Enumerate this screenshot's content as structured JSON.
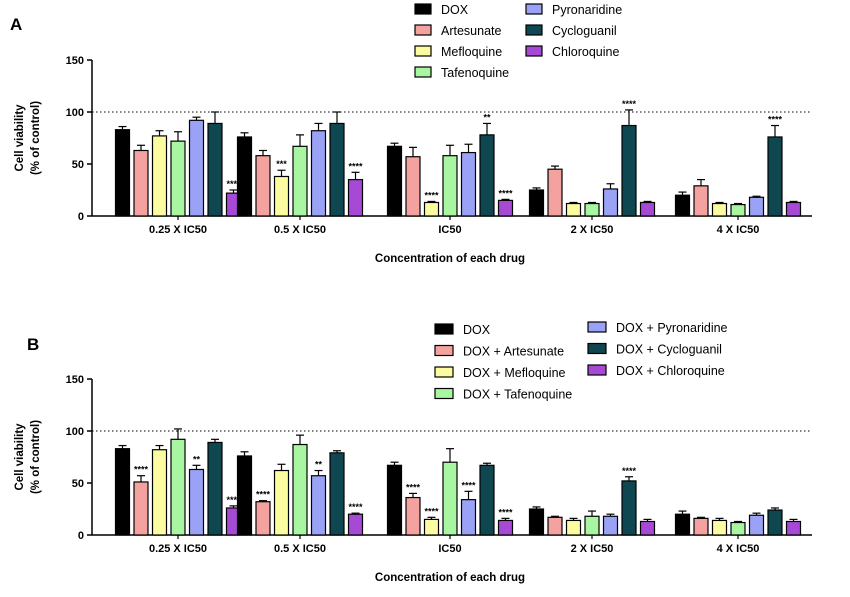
{
  "colors": {
    "DOX": "#000000",
    "Artesunate": "#f4a2a0",
    "Mefloquine": "#fbfca0",
    "Tafenoquine": "#a8f5a2",
    "Pyronaridine": "#9aa2f5",
    "Cycloguanil": "#0e4750",
    "Chloroquine": "#a64ad6"
  },
  "chart_data": [
    {
      "panel": "A",
      "type": "bar",
      "xlabel": "Concentration of each drug",
      "ylabel": [
        "Cell viability",
        "(% of control)"
      ],
      "ylim": [
        0,
        150
      ],
      "yticks": [
        "0",
        "50",
        "100",
        "150"
      ],
      "reference_line": 100,
      "legend_position": "top",
      "categories": [
        "0.25 X IC50",
        "0.5 X IC50",
        "IC50",
        "2 X IC50",
        "4 X IC50"
      ],
      "series": [
        {
          "name": "DOX",
          "key": "DOX",
          "values": [
            83,
            76,
            67,
            25,
            20
          ],
          "errors": [
            3,
            4,
            3,
            2,
            3
          ],
          "sig": [
            "",
            "",
            "",
            "",
            ""
          ]
        },
        {
          "name": "Artesunate",
          "key": "Artesunate",
          "values": [
            63,
            58,
            57,
            45,
            29
          ],
          "errors": [
            5,
            5,
            9,
            3,
            6
          ],
          "sig": [
            "",
            "",
            "",
            "",
            ""
          ]
        },
        {
          "name": "Mefloquine",
          "key": "Mefloquine",
          "values": [
            77,
            38,
            13,
            12,
            12
          ],
          "errors": [
            5,
            6,
            1,
            1,
            1
          ],
          "sig": [
            "",
            "***",
            "****",
            "",
            ""
          ]
        },
        {
          "name": "Tafenoquine",
          "key": "Tafenoquine",
          "values": [
            72,
            67,
            58,
            12,
            11
          ],
          "errors": [
            9,
            11,
            10,
            1,
            1
          ],
          "sig": [
            "",
            "",
            "",
            "",
            ""
          ]
        },
        {
          "name": "Pyronaridine",
          "key": "Pyronaridine",
          "values": [
            92,
            82,
            61,
            26,
            18
          ],
          "errors": [
            3,
            7,
            8,
            5,
            1
          ],
          "sig": [
            "",
            "",
            "",
            "",
            ""
          ]
        },
        {
          "name": "Cycloguanil",
          "key": "Cycloguanil",
          "values": [
            89,
            89,
            78,
            87,
            76
          ],
          "errors": [
            11,
            11,
            11,
            15,
            11
          ],
          "sig": [
            "",
            "",
            "**",
            "****",
            "****"
          ]
        },
        {
          "name": "Chloroquine",
          "key": "Chloroquine",
          "values": [
            22,
            35,
            15,
            13,
            13
          ],
          "errors": [
            3,
            7,
            1,
            1,
            1
          ],
          "sig": [
            "****",
            "****",
            "****",
            "",
            ""
          ]
        }
      ]
    },
    {
      "panel": "B",
      "type": "bar",
      "xlabel": "Concentration of each drug",
      "ylabel": [
        "Cell viability",
        "(% of control)"
      ],
      "ylim": [
        0,
        150
      ],
      "yticks": [
        "0",
        "50",
        "100",
        "150"
      ],
      "reference_line": 100,
      "legend_position": "top",
      "categories": [
        "0.25 X IC50",
        "0.5 X IC50",
        "IC50",
        "2 X IC50",
        "4 X IC50"
      ],
      "series": [
        {
          "name": "DOX",
          "key": "DOX",
          "values": [
            83,
            76,
            67,
            25,
            20
          ],
          "errors": [
            3,
            4,
            3,
            2,
            3
          ],
          "sig": [
            "",
            "",
            "",
            "",
            ""
          ]
        },
        {
          "name": "DOX + Artesunate",
          "key": "Artesunate",
          "values": [
            51,
            32,
            36,
            17,
            16
          ],
          "errors": [
            6,
            1,
            4,
            1,
            1
          ],
          "sig": [
            "****",
            "****",
            "****",
            "",
            ""
          ]
        },
        {
          "name": "DOX + Mefloquine",
          "key": "Mefloquine",
          "values": [
            82,
            62,
            15,
            14,
            14
          ],
          "errors": [
            4,
            6,
            2,
            2,
            2
          ],
          "sig": [
            "",
            "",
            "****",
            "",
            ""
          ]
        },
        {
          "name": "DOX + Tafenoquine",
          "key": "Tafenoquine",
          "values": [
            92,
            87,
            70,
            18,
            12
          ],
          "errors": [
            10,
            9,
            13,
            5,
            1
          ],
          "sig": [
            "",
            "",
            "",
            "",
            ""
          ]
        },
        {
          "name": "DOX + Pyronaridine",
          "key": "Pyronaridine",
          "values": [
            63,
            57,
            34,
            18,
            19
          ],
          "errors": [
            4,
            5,
            8,
            2,
            2
          ],
          "sig": [
            "**",
            "**",
            "****",
            "",
            ""
          ]
        },
        {
          "name": "DOX + Cycloguanil",
          "key": "Cycloguanil",
          "values": [
            89,
            79,
            67,
            52,
            24
          ],
          "errors": [
            3,
            2,
            2,
            4,
            2
          ],
          "sig": [
            "",
            "",
            "",
            "****",
            ""
          ]
        },
        {
          "name": "DOX + Chloroquine",
          "key": "Chloroquine",
          "values": [
            26,
            20,
            14,
            13,
            13
          ],
          "errors": [
            2,
            1,
            2,
            2,
            2
          ],
          "sig": [
            "****",
            "****",
            "****",
            "",
            ""
          ]
        }
      ]
    }
  ]
}
